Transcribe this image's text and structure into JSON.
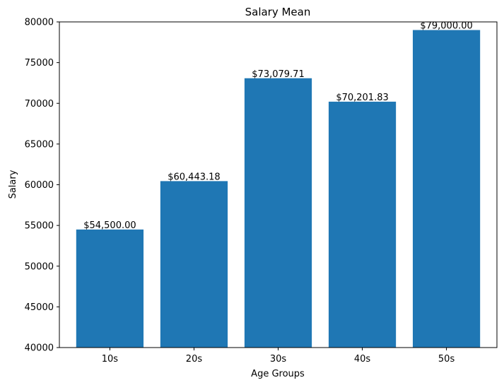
{
  "chart_data": {
    "type": "bar",
    "title": "Salary Mean",
    "xlabel": "Age Groups",
    "ylabel": "Salary",
    "categories": [
      "10s",
      "20s",
      "30s",
      "40s",
      "50s"
    ],
    "values": [
      54500.0,
      60443.18,
      73079.71,
      70201.83,
      79000.0
    ],
    "data_labels": [
      "$54,500.00",
      "$60,443.18",
      "$73,079.71",
      "$70,201.83",
      "$79,000.00"
    ],
    "ylim": [
      40000,
      80000
    ],
    "yticks": [
      40000,
      45000,
      50000,
      55000,
      60000,
      65000,
      70000,
      75000,
      80000
    ],
    "ytick_labels": [
      "40000",
      "45000",
      "50000",
      "55000",
      "60000",
      "65000",
      "70000",
      "75000",
      "80000"
    ],
    "grid": false,
    "colors": {
      "bar": "#1f77b4"
    }
  }
}
